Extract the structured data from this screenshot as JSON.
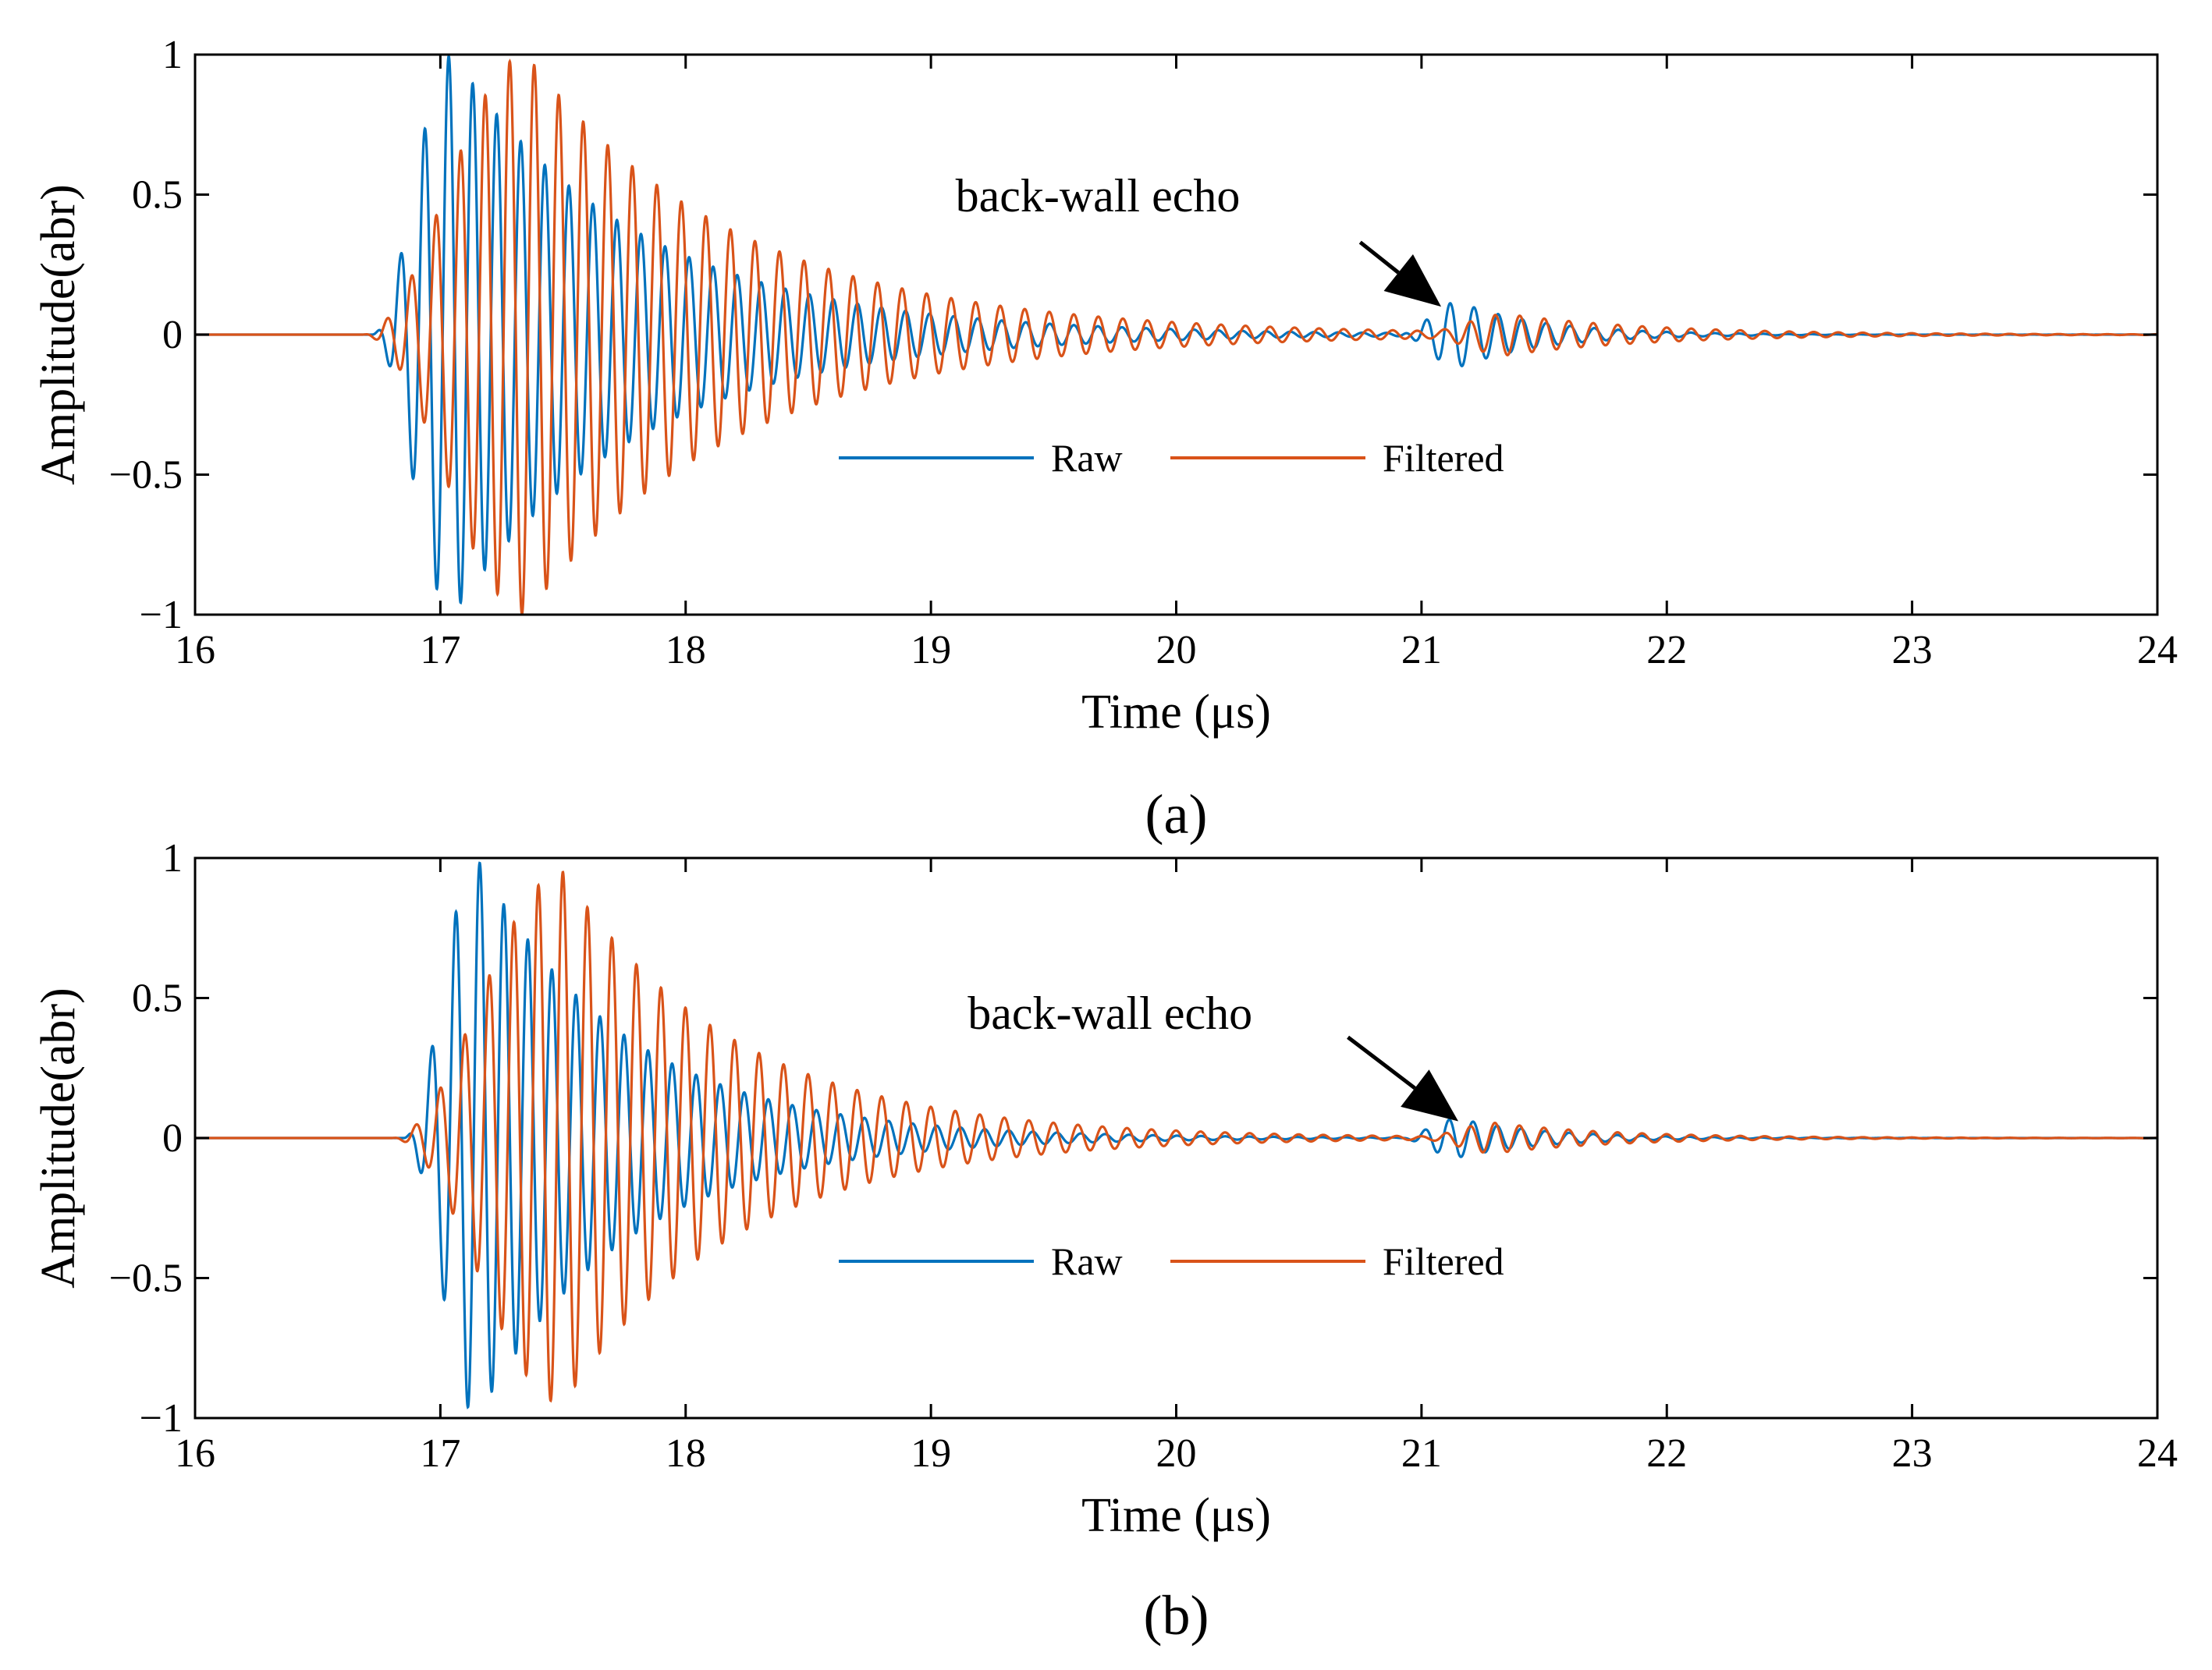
{
  "chart_data": [
    {
      "type": "line",
      "caption": "(a)",
      "xlabel": "Time (μs)",
      "ylabel": "Amplitude(abr)",
      "xlim": [
        16,
        24
      ],
      "ylim": [
        -1,
        1
      ],
      "xticks": [
        16,
        17,
        18,
        19,
        20,
        21,
        22,
        23,
        24
      ],
      "yticks": [
        -1,
        -0.5,
        0,
        0.5,
        1
      ],
      "xtick_labels": [
        "16",
        "17",
        "18",
        "19",
        "20",
        "21",
        "22",
        "23",
        "24"
      ],
      "ytick_labels": [
        "−1",
        "−0.5",
        "0",
        "0.5",
        "1"
      ],
      "annotation": {
        "text": "back-wall echo",
        "text_x": 19.1,
        "text_y": 0.44,
        "arrow_from": [
          20.75,
          0.33
        ],
        "arrow_to": [
          21.08,
          0.1
        ]
      },
      "legend": {
        "position": "bottom-center",
        "entries": [
          "Raw",
          "Filtered"
        ]
      },
      "series": [
        {
          "name": "Raw",
          "color": "#0072BD",
          "freq": 10.2,
          "phase": 0.3,
          "packets": [
            {
              "start": 16.72,
              "peak_t": 17.05,
              "amp": 1.0,
              "rise": 0.22,
              "decay": 0.75
            },
            {
              "start": 20.9,
              "peak_t": 21.15,
              "amp": 0.12,
              "rise": 0.15,
              "decay": 0.35
            }
          ]
        },
        {
          "name": "Filtered",
          "color": "#D95319",
          "freq": 10.0,
          "phase": 1.4,
          "packets": [
            {
              "start": 16.68,
              "peak_t": 17.35,
              "amp": 1.0,
              "rise": 0.3,
              "decay": 0.85
            },
            {
              "start": 21.0,
              "peak_t": 21.35,
              "amp": 0.07,
              "rise": 0.2,
              "decay": 0.6
            }
          ]
        }
      ]
    },
    {
      "type": "line",
      "caption": "(b)",
      "xlabel": "Time (μs)",
      "ylabel": "Amplitude(abr)",
      "xlim": [
        16,
        24
      ],
      "ylim": [
        -1,
        1
      ],
      "xticks": [
        16,
        17,
        18,
        19,
        20,
        21,
        22,
        23,
        24
      ],
      "yticks": [
        -1,
        -0.5,
        0,
        0.5,
        1
      ],
      "xtick_labels": [
        "16",
        "17",
        "18",
        "19",
        "20",
        "21",
        "22",
        "23",
        "24"
      ],
      "ytick_labels": [
        "−1",
        "−0.5",
        "0",
        "0.5",
        "1"
      ],
      "annotation": {
        "text": "back-wall echo",
        "text_x": 19.15,
        "text_y": 0.39,
        "arrow_from": [
          20.7,
          0.36
        ],
        "arrow_to": [
          21.15,
          0.06
        ]
      },
      "legend": {
        "position": "bottom-center",
        "entries": [
          "Raw",
          "Filtered"
        ]
      },
      "series": [
        {
          "name": "Raw",
          "color": "#0072BD",
          "freq": 10.2,
          "phase": 0.5,
          "packets": [
            {
              "start": 16.85,
              "peak_t": 17.15,
              "amp": 1.0,
              "rise": 0.22,
              "decay": 0.6
            },
            {
              "start": 20.9,
              "peak_t": 21.15,
              "amp": 0.07,
              "rise": 0.15,
              "decay": 0.35
            }
          ]
        },
        {
          "name": "Filtered",
          "color": "#D95319",
          "freq": 10.0,
          "phase": 1.6,
          "packets": [
            {
              "start": 16.8,
              "peak_t": 17.5,
              "amp": 0.95,
              "rise": 0.3,
              "decay": 0.7
            },
            {
              "start": 21.0,
              "peak_t": 21.3,
              "amp": 0.05,
              "rise": 0.2,
              "decay": 0.5
            }
          ]
        }
      ]
    }
  ]
}
